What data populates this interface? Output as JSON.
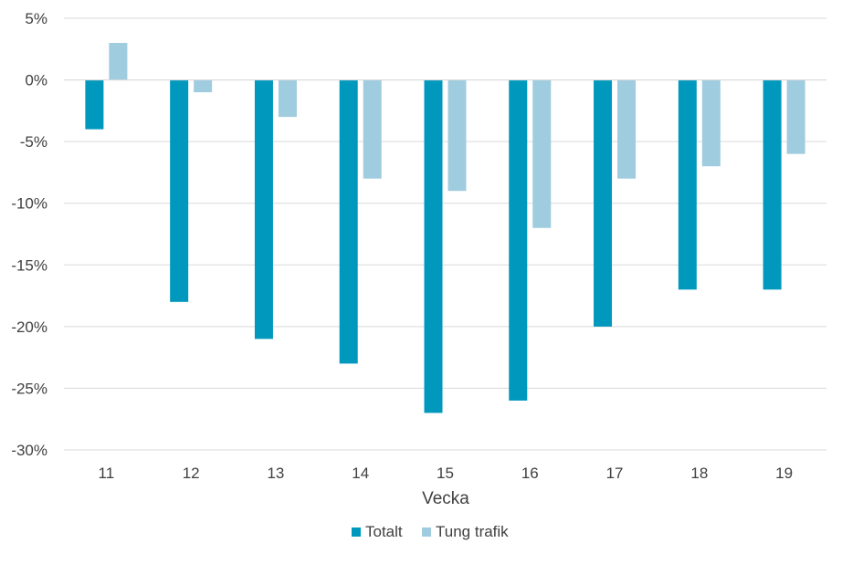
{
  "chart_data": {
    "type": "bar",
    "categories": [
      "11",
      "12",
      "13",
      "14",
      "15",
      "16",
      "17",
      "18",
      "19"
    ],
    "series": [
      {
        "name": "Totalt",
        "values": [
          -4,
          -18,
          -21,
          -23,
          -27,
          -26,
          -20,
          -17,
          -17
        ],
        "color": "#0098BC"
      },
      {
        "name": "Tung trafik",
        "values": [
          3,
          -1,
          -3,
          -8,
          -9,
          -12,
          -8,
          -7,
          -6
        ],
        "color": "#9FCCDF"
      }
    ],
    "xlabel": "Vecka",
    "ylabel": "",
    "ylim": [
      -30,
      5
    ],
    "yticks": [
      5,
      0,
      -5,
      -10,
      -15,
      -20,
      -25,
      -30
    ],
    "ytick_format": "percent",
    "grid": true,
    "legend_position": "bottom-center"
  }
}
